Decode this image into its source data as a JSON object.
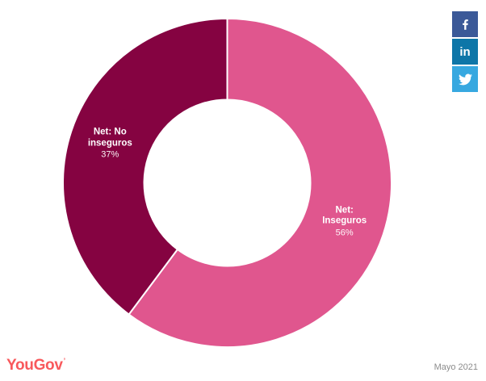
{
  "chart_data": {
    "type": "pie",
    "subtype": "donut",
    "title": "",
    "legend": "none",
    "start_angle_deg": 0,
    "direction": "clockwise",
    "values_sum": 93,
    "label_color": "#ffffff",
    "slices": [
      {
        "name": "Net: Inseguros",
        "value": 56,
        "percent_label": "56%",
        "label_text": "Net:\nInseguros",
        "color": "#e0568e"
      },
      {
        "name": "Net: No inseguros",
        "value": 37,
        "percent_label": "37%",
        "label_text": "Net: No\ninseguros",
        "color": "#850341"
      }
    ]
  },
  "social": {
    "items": [
      {
        "icon": "facebook-icon",
        "color": "#3b5998"
      },
      {
        "icon": "linkedin-icon",
        "color": "#0e76a8",
        "glyph": "in"
      },
      {
        "icon": "twitter-icon",
        "color": "#37a8e0"
      }
    ]
  },
  "footer": {
    "brand": "YouGov",
    "brand_accent": "’",
    "brand_color": "#f8595c",
    "date_label": "Mayo 2021",
    "date_color": "#8c8c8c"
  }
}
